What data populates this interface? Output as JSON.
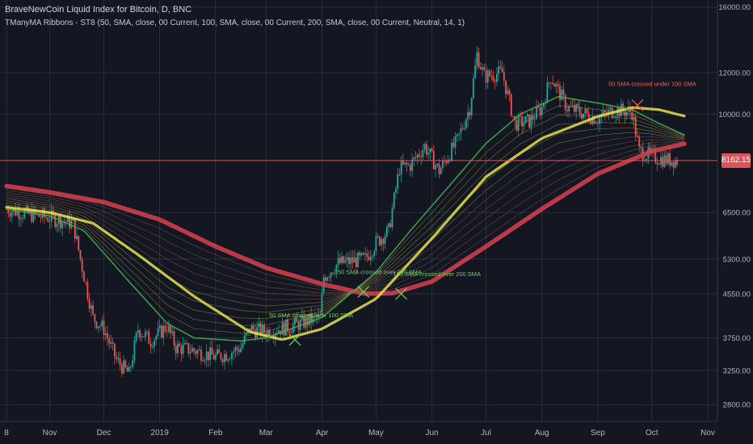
{
  "header": {
    "title": "BraveNewCoin Liquid Index for Bitcoin, D, BNC",
    "indicator": "TManyMA Ribbons - ST8 (50, SMA, close, 00 Current, 100, SMA, close, 00 Current, 200, SMA, close, 00 Current, Neutral, 14, 1)"
  },
  "colors": {
    "background": "#131722",
    "grid": "#2a2e39",
    "up": "#26a69a",
    "down": "#ef5350",
    "sma50": "#4caf50",
    "sma100": "#e8e04a",
    "sma200": "#d9414f",
    "label_green": "#6fcf5a",
    "label_red": "#ff5a5a",
    "price_line": "#e0525a"
  },
  "chart_data": {
    "type": "candlestick",
    "y_scale": "log",
    "ylim": [
      2600,
      16500
    ],
    "x_range": [
      "2018-10-08",
      "2019-11-01"
    ],
    "x_ticks": [
      {
        "date": "2018-10-08",
        "label": "8"
      },
      {
        "date": "2018-11-01",
        "label": "Nov"
      },
      {
        "date": "2018-12-01",
        "label": "Dec"
      },
      {
        "date": "2019-01-01",
        "label": "2019"
      },
      {
        "date": "2019-02-01",
        "label": "Feb"
      },
      {
        "date": "2019-03-01",
        "label": "Mar"
      },
      {
        "date": "2019-04-01",
        "label": "Apr"
      },
      {
        "date": "2019-05-01",
        "label": "May"
      },
      {
        "date": "2019-06-01",
        "label": "Jun"
      },
      {
        "date": "2019-07-01",
        "label": "Jul"
      },
      {
        "date": "2019-08-01",
        "label": "Aug"
      },
      {
        "date": "2019-09-01",
        "label": "Sep"
      },
      {
        "date": "2019-10-01",
        "label": "Oct"
      },
      {
        "date": "2019-11-01",
        "label": "Nov"
      }
    ],
    "y_ticks": [
      {
        "value": 16000,
        "label": "16000.00"
      },
      {
        "value": 12000,
        "label": "12000.00"
      },
      {
        "value": 10000,
        "label": "10000.00"
      },
      {
        "value": 6500,
        "label": "6500.00"
      },
      {
        "value": 5300,
        "label": "5300.00"
      },
      {
        "value": 4550,
        "label": "4550.00"
      },
      {
        "value": 3750,
        "label": "3750.00"
      },
      {
        "value": 3250,
        "label": "3250.00"
      },
      {
        "value": 2800,
        "label": "2800.00"
      }
    ],
    "last_price": {
      "value": 8162.15,
      "label": "8162.15"
    },
    "close_path": [
      [
        "2018-10-08",
        6600
      ],
      [
        "2018-10-20",
        6450
      ],
      [
        "2018-11-01",
        6350
      ],
      [
        "2018-11-14",
        6200
      ],
      [
        "2018-11-18",
        5300
      ],
      [
        "2018-11-25",
        4100
      ],
      [
        "2018-12-01",
        3900
      ],
      [
        "2018-12-08",
        3400
      ],
      [
        "2018-12-15",
        3200
      ],
      [
        "2018-12-20",
        3900
      ],
      [
        "2018-12-27",
        3700
      ],
      [
        "2019-01-05",
        3950
      ],
      [
        "2019-01-10",
        3600
      ],
      [
        "2019-01-20",
        3550
      ],
      [
        "2019-02-01",
        3450
      ],
      [
        "2019-02-08",
        3500
      ],
      [
        "2019-02-15",
        3600
      ],
      [
        "2019-02-20",
        3900
      ],
      [
        "2019-03-01",
        3850
      ],
      [
        "2019-03-15",
        3950
      ],
      [
        "2019-03-31",
        4100
      ],
      [
        "2019-04-02",
        4900
      ],
      [
        "2019-04-10",
        5200
      ],
      [
        "2019-04-25",
        5300
      ],
      [
        "2019-05-01",
        5700
      ],
      [
        "2019-05-08",
        6000
      ],
      [
        "2019-05-14",
        7900
      ],
      [
        "2019-05-20",
        8000
      ],
      [
        "2019-05-28",
        8700
      ],
      [
        "2019-06-05",
        7800
      ],
      [
        "2019-06-15",
        8900
      ],
      [
        "2019-06-22",
        10300
      ],
      [
        "2019-06-26",
        13000
      ],
      [
        "2019-06-30",
        11800
      ],
      [
        "2019-07-10",
        12000
      ],
      [
        "2019-07-17",
        9600
      ],
      [
        "2019-07-25",
        9700
      ],
      [
        "2019-08-01",
        10300
      ],
      [
        "2019-08-06",
        11800
      ],
      [
        "2019-08-15",
        10300
      ],
      [
        "2019-08-22",
        10100
      ],
      [
        "2019-09-01",
        9800
      ],
      [
        "2019-09-10",
        10200
      ],
      [
        "2019-09-20",
        10100
      ],
      [
        "2019-09-24",
        8500
      ],
      [
        "2019-10-01",
        8300
      ],
      [
        "2019-10-08",
        8200
      ],
      [
        "2019-10-15",
        8162
      ]
    ],
    "series": [
      {
        "name": "50 SMA",
        "color": "#4caf50",
        "points": [
          [
            "2018-10-08",
            6600
          ],
          [
            "2018-11-01",
            6400
          ],
          [
            "2018-11-20",
            6000
          ],
          [
            "2018-12-15",
            4800
          ],
          [
            "2019-01-05",
            4000
          ],
          [
            "2019-01-20",
            3750
          ],
          [
            "2019-02-15",
            3700
          ],
          [
            "2019-03-01",
            3750
          ],
          [
            "2019-04-01",
            4100
          ],
          [
            "2019-05-01",
            5000
          ],
          [
            "2019-05-20",
            6000
          ],
          [
            "2019-06-15",
            7600
          ],
          [
            "2019-07-01",
            8800
          ],
          [
            "2019-07-20",
            10000
          ],
          [
            "2019-08-10",
            10800
          ],
          [
            "2019-09-01",
            10500
          ],
          [
            "2019-09-20",
            10200
          ],
          [
            "2019-10-05",
            9600
          ],
          [
            "2019-10-20",
            9100
          ]
        ]
      },
      {
        "name": "100 SMA",
        "color": "#e8e04a",
        "points": [
          [
            "2018-10-08",
            6650
          ],
          [
            "2018-11-01",
            6500
          ],
          [
            "2018-11-25",
            6200
          ],
          [
            "2018-12-20",
            5400
          ],
          [
            "2019-01-20",
            4500
          ],
          [
            "2019-02-20",
            3850
          ],
          [
            "2019-03-10",
            3720
          ],
          [
            "2019-04-01",
            3900
          ],
          [
            "2019-05-01",
            4450
          ],
          [
            "2019-06-01",
            5800
          ],
          [
            "2019-07-01",
            7600
          ],
          [
            "2019-08-01",
            9000
          ],
          [
            "2019-09-01",
            9900
          ],
          [
            "2019-09-20",
            10300
          ],
          [
            "2019-10-05",
            10200
          ],
          [
            "2019-10-20",
            9900
          ]
        ]
      },
      {
        "name": "200 SMA",
        "color": "#d9414f",
        "points": [
          [
            "2018-10-08",
            7300
          ],
          [
            "2018-11-01",
            7100
          ],
          [
            "2018-12-01",
            6800
          ],
          [
            "2019-01-01",
            6300
          ],
          [
            "2019-02-01",
            5600
          ],
          [
            "2019-03-01",
            5100
          ],
          [
            "2019-04-01",
            4750
          ],
          [
            "2019-04-25",
            4550
          ],
          [
            "2019-05-10",
            4560
          ],
          [
            "2019-06-01",
            4800
          ],
          [
            "2019-07-01",
            5600
          ],
          [
            "2019-08-01",
            6600
          ],
          [
            "2019-09-01",
            7700
          ],
          [
            "2019-10-01",
            8500
          ],
          [
            "2019-10-20",
            8800
          ]
        ]
      }
    ],
    "annotations": [
      {
        "date": "2019-03-17",
        "price": 3720,
        "text": "50 SMA crossed over 100 SMA",
        "color": "#6fcf5a"
      },
      {
        "date": "2019-04-24",
        "price": 4590,
        "text": "50 SMA crossed over 200 SMA",
        "color": "#6fcf5a"
      },
      {
        "date": "2019-05-15",
        "price": 4550,
        "text": "100 SMA crossed over 200 SMA",
        "color": "#6fcf5a"
      },
      {
        "date": "2019-09-23",
        "price": 10400,
        "text": "50 SMA crossed under 100 SMA",
        "color": "#ff5a5a"
      }
    ]
  }
}
